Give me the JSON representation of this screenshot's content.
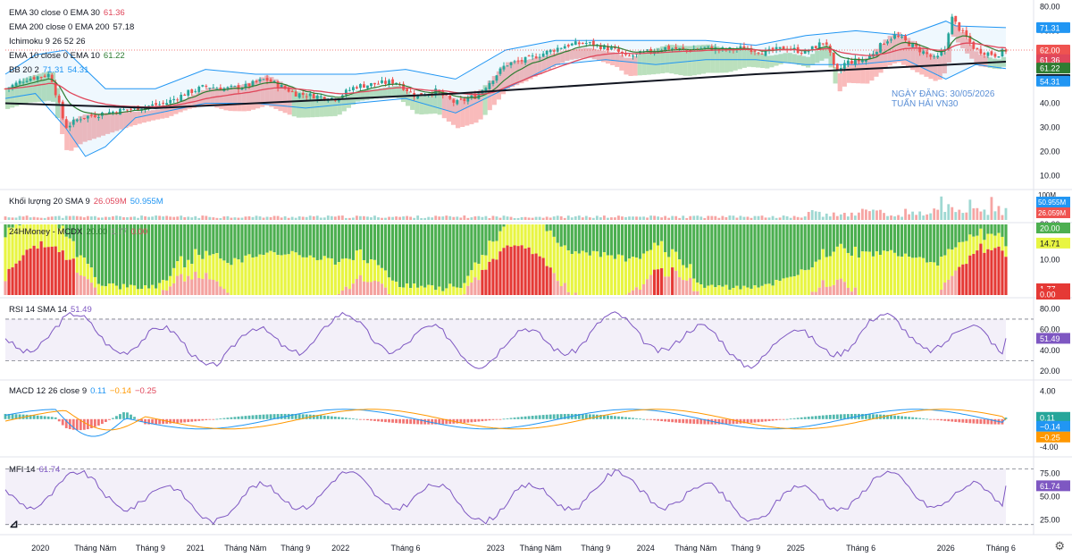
{
  "legends": {
    "ema30": {
      "label": "EMA 30 close 0 EMA 30",
      "value": "61.36"
    },
    "ema200": {
      "label": "EMA 200 close 0 EMA 200",
      "value": "57.18"
    },
    "ichimoku": {
      "label": "Ichimoku 9 26 52 26"
    },
    "ema10": {
      "label": "EMA 10 close 0 EMA 10",
      "value": "61.22"
    },
    "bb": {
      "label": "BB 20 2",
      "value1": "71.31",
      "value2": "54.31"
    },
    "volume": {
      "label": "Khối lượng 20 SMA 9",
      "value1": "26.059M",
      "value2": "50.955M"
    },
    "mcdx": {
      "label": "24HMoney - MCDX",
      "value1": "20.00",
      "value2": "1.77",
      "value3": "0.00"
    },
    "rsi": {
      "label": "RSI 14 SMA 14",
      "value": "51.49"
    },
    "macd": {
      "label": "MACD 12 26 close 9",
      "value1": "0.11",
      "value2": "−0.14",
      "value3": "−0.25"
    },
    "mfi": {
      "label": "MFI 14",
      "value": "61.74"
    }
  },
  "watermark": {
    "line1": "NGÀY ĐĂNG: 30/05/2026",
    "line2": "TUẤN HẢI VN30"
  },
  "colors": {
    "up": "#26a69a",
    "down": "#ef5350",
    "ema30": "#e0475b",
    "ema200": "#131722",
    "ema10": "#2e7d32",
    "bb": "#2196f3",
    "cloudUp": "#a5d6a7",
    "cloudDown": "#f8a5a5",
    "rsi": "#7e57c2",
    "mcdxGreen": "#4caf50",
    "mcdxYellow": "#e8f542",
    "mcdxRed": "#e53935"
  },
  "chart_data": [
    {
      "type": "candlestick",
      "panel": "price",
      "yticks": [
        10,
        20,
        30,
        40,
        50,
        60,
        70,
        80
      ],
      "ylim": [
        5,
        82
      ],
      "x_labels": [
        "2020",
        "Tháng Năm",
        "Tháng 9",
        "2021",
        "Tháng Năm",
        "Tháng 9",
        "2022",
        "Tháng 6",
        "2023",
        "Tháng Năm",
        "Tháng 9",
        "2024",
        "Tháng Năm",
        "Tháng 9",
        "2025",
        "Tháng 6",
        "2026",
        "Tháng 6"
      ],
      "x_label_fracs": [
        0.035,
        0.09,
        0.145,
        0.19,
        0.24,
        0.29,
        0.335,
        0.4,
        0.49,
        0.535,
        0.59,
        0.64,
        0.69,
        0.74,
        0.79,
        0.855,
        0.94,
        0.995
      ],
      "close_path": [
        [
          0,
          46
        ],
        [
          0.02,
          50
        ],
        [
          0.045,
          52
        ],
        [
          0.06,
          30
        ],
        [
          0.075,
          34
        ],
        [
          0.1,
          36
        ],
        [
          0.13,
          38
        ],
        [
          0.16,
          40
        ],
        [
          0.18,
          44
        ],
        [
          0.2,
          47
        ],
        [
          0.22,
          46
        ],
        [
          0.24,
          47
        ],
        [
          0.26,
          50
        ],
        [
          0.27,
          48
        ],
        [
          0.29,
          44
        ],
        [
          0.31,
          43
        ],
        [
          0.33,
          42
        ],
        [
          0.35,
          47
        ],
        [
          0.37,
          48
        ],
        [
          0.39,
          49
        ],
        [
          0.41,
          43
        ],
        [
          0.43,
          45
        ],
        [
          0.45,
          40
        ],
        [
          0.47,
          43
        ],
        [
          0.48,
          47
        ],
        [
          0.5,
          56
        ],
        [
          0.52,
          58
        ],
        [
          0.54,
          61
        ],
        [
          0.56,
          64
        ],
        [
          0.58,
          65
        ],
        [
          0.6,
          63
        ],
        [
          0.61,
          62
        ],
        [
          0.62,
          59
        ],
        [
          0.64,
          61
        ],
        [
          0.66,
          63
        ],
        [
          0.68,
          62
        ],
        [
          0.7,
          63
        ],
        [
          0.72,
          62
        ],
        [
          0.74,
          63
        ],
        [
          0.76,
          61
        ],
        [
          0.78,
          63
        ],
        [
          0.8,
          61
        ],
        [
          0.82,
          66
        ],
        [
          0.83,
          52
        ],
        [
          0.84,
          57
        ],
        [
          0.86,
          58
        ],
        [
          0.88,
          66
        ],
        [
          0.89,
          68
        ],
        [
          0.91,
          63
        ],
        [
          0.93,
          58
        ],
        [
          0.94,
          63
        ],
        [
          0.945,
          76
        ],
        [
          0.955,
          70
        ],
        [
          0.97,
          62
        ],
        [
          0.99,
          60
        ],
        [
          1.0,
          62
        ]
      ],
      "ema200_path": [
        [
          0,
          40
        ],
        [
          0.15,
          38
        ],
        [
          0.3,
          41
        ],
        [
          0.45,
          44
        ],
        [
          0.6,
          48
        ],
        [
          0.75,
          52
        ],
        [
          0.9,
          55
        ],
        [
          1.0,
          57.2
        ]
      ],
      "bb_upper_path": [
        [
          0,
          52
        ],
        [
          0.03,
          60
        ],
        [
          0.06,
          62
        ],
        [
          0.08,
          54
        ],
        [
          0.1,
          46
        ],
        [
          0.15,
          46
        ],
        [
          0.2,
          54
        ],
        [
          0.25,
          52
        ],
        [
          0.3,
          52
        ],
        [
          0.35,
          52
        ],
        [
          0.4,
          54
        ],
        [
          0.45,
          50
        ],
        [
          0.5,
          62
        ],
        [
          0.55,
          66
        ],
        [
          0.6,
          66
        ],
        [
          0.65,
          66
        ],
        [
          0.7,
          66
        ],
        [
          0.75,
          64
        ],
        [
          0.8,
          68
        ],
        [
          0.85,
          70
        ],
        [
          0.9,
          68
        ],
        [
          0.94,
          74
        ],
        [
          0.95,
          72
        ],
        [
          1.0,
          71.3
        ]
      ],
      "bb_lower_path": [
        [
          0,
          42
        ],
        [
          0.03,
          44
        ],
        [
          0.06,
          30
        ],
        [
          0.08,
          18
        ],
        [
          0.1,
          22
        ],
        [
          0.13,
          34
        ],
        [
          0.2,
          40
        ],
        [
          0.25,
          40
        ],
        [
          0.3,
          38
        ],
        [
          0.35,
          40
        ],
        [
          0.4,
          42
        ],
        [
          0.45,
          36
        ],
        [
          0.5,
          46
        ],
        [
          0.55,
          56
        ],
        [
          0.6,
          58
        ],
        [
          0.65,
          56
        ],
        [
          0.7,
          58
        ],
        [
          0.75,
          58
        ],
        [
          0.8,
          56
        ],
        [
          0.85,
          56
        ],
        [
          0.9,
          58
        ],
        [
          0.94,
          50
        ],
        [
          0.97,
          56
        ],
        [
          1.0,
          54.3
        ]
      ],
      "last_values": {
        "bb_upper": 71.31,
        "close": 62.0,
        "ema30": 61.36,
        "ema10": 61.22,
        "ema200": 57.18,
        "bb_lower": 54.31
      }
    },
    {
      "type": "bar",
      "panel": "volume",
      "yticks": [
        "100M"
      ],
      "last_values": {
        "sma": "50.955M",
        "volume": "26.059M"
      }
    },
    {
      "type": "bar",
      "panel": "mcdx",
      "yticks": [
        0.0,
        10.0,
        20.0
      ],
      "ylim": [
        0,
        20
      ],
      "last_values": {
        "top": 20.0,
        "mid": 14.71,
        "red": 1.77,
        "zero": 0.0
      }
    },
    {
      "type": "line",
      "panel": "rsi",
      "yticks": [
        20,
        40,
        60,
        80
      ],
      "ylim": [
        14,
        88
      ],
      "band": [
        30,
        70
      ],
      "last_value": 51.49
    },
    {
      "type": "line",
      "panel": "macd",
      "yticks": [
        -4,
        4
      ],
      "ylim": [
        -5,
        5.2
      ],
      "last_values": {
        "macd": 0.11,
        "signal": -0.14,
        "hist": -0.25
      }
    },
    {
      "type": "line",
      "panel": "mfi",
      "yticks": [
        25,
        50,
        75
      ],
      "ylim": [
        12,
        90
      ],
      "band": [
        20,
        80
      ],
      "last_value": 61.74
    }
  ]
}
